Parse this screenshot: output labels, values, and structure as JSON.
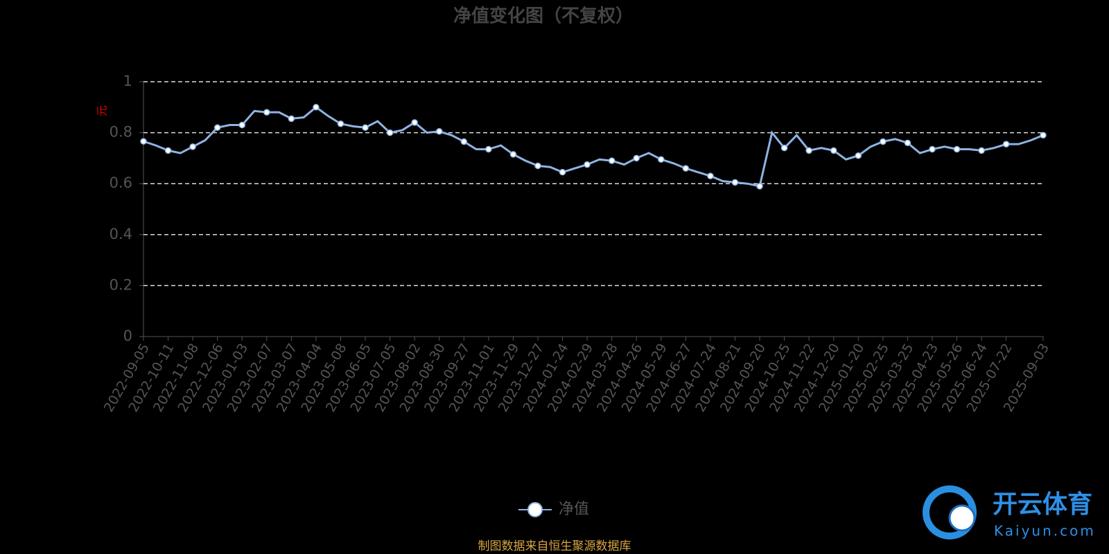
{
  "chart_data": {
    "type": "line",
    "title": "净值变化图（不复权）",
    "y_label": "元",
    "categories": [
      "2022-09-05",
      null,
      "2022-10-11",
      null,
      "2022-11-08",
      null,
      "2022-12-06",
      null,
      "2023-01-03",
      null,
      "2023-02-07",
      null,
      "2023-03-07",
      null,
      "2023-04-04",
      null,
      "2023-05-08",
      null,
      "2023-06-05",
      null,
      "2023-07-05",
      null,
      "2023-08-02",
      null,
      "2023-08-30",
      null,
      "2023-09-27",
      null,
      "2023-11-01",
      null,
      "2023-11-29",
      null,
      "2023-12-27",
      null,
      "2024-01-24",
      null,
      "2024-02-29",
      null,
      "2024-03-28",
      null,
      "2024-04-26",
      null,
      "2024-05-29",
      null,
      "2024-06-27",
      null,
      "2024-07-24",
      null,
      "2024-08-21",
      null,
      "2024-09-20",
      null,
      "2024-10-25",
      null,
      "2024-11-22",
      null,
      "2024-12-20",
      null,
      "2025-01-20",
      null,
      "2025-02-25",
      null,
      "2025-03-25",
      null,
      "2025-04-23",
      null,
      "2025-05-26",
      null,
      "2025-06-24",
      null,
      "2025-07-22",
      null,
      null,
      "2025-09-03"
    ],
    "series": [
      {
        "name": "净值",
        "color": "#8eb4e3",
        "values": [
          0.766,
          0.75,
          0.73,
          0.72,
          0.745,
          0.77,
          0.82,
          0.83,
          0.83,
          0.885,
          0.88,
          0.88,
          0.855,
          0.86,
          0.9,
          0.865,
          0.835,
          0.825,
          0.82,
          0.845,
          0.8,
          0.81,
          0.84,
          0.8,
          0.805,
          0.79,
          0.765,
          0.735,
          0.735,
          0.75,
          0.715,
          0.69,
          0.67,
          0.665,
          0.645,
          0.66,
          0.675,
          0.695,
          0.69,
          0.675,
          0.7,
          0.72,
          0.695,
          0.68,
          0.66,
          0.645,
          0.63,
          0.61,
          0.605,
          0.6,
          0.59,
          0.8,
          0.74,
          0.79,
          0.73,
          0.74,
          0.73,
          0.695,
          0.71,
          0.745,
          0.765,
          0.775,
          0.76,
          0.72,
          0.735,
          0.745,
          0.735,
          0.735,
          0.73,
          0.74,
          0.755,
          0.755,
          0.77,
          0.79
        ]
      }
    ],
    "ylim": [
      0,
      1
    ],
    "yticks": [
      0,
      0.2,
      0.4,
      0.6,
      0.8,
      1
    ],
    "grid": true
  },
  "footer": "制图数据来自恒生聚源数据库",
  "logo": {
    "name": "开云体育",
    "site": "Kaiyun.com"
  }
}
